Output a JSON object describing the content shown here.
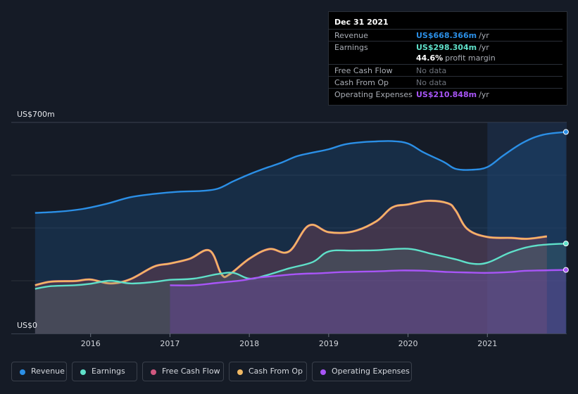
{
  "chart_data": {
    "type": "area",
    "y_axis": {
      "top_label": "US$700m",
      "bottom_label": "US$0",
      "ylim": [
        0,
        700
      ],
      "unit": "US$m"
    },
    "x_ticks": [
      {
        "label": "2016",
        "x": 2016.0
      },
      {
        "label": "2017",
        "x": 2017.0
      },
      {
        "label": "2018",
        "x": 2018.0
      },
      {
        "label": "2019",
        "x": 2019.0
      },
      {
        "label": "2020",
        "x": 2020.0
      },
      {
        "label": "2021",
        "x": 2021.0
      }
    ],
    "xlim": [
      2015.0,
      2022.0
    ],
    "highlight_start": 2021.0,
    "series": [
      {
        "name": "Revenue",
        "color": "#2b8fe6",
        "points": [
          [
            2015.3,
            400
          ],
          [
            2015.6,
            404
          ],
          [
            2015.9,
            413
          ],
          [
            2016.2,
            430
          ],
          [
            2016.5,
            452
          ],
          [
            2016.8,
            463
          ],
          [
            2017.1,
            470
          ],
          [
            2017.4,
            473
          ],
          [
            2017.6,
            480
          ],
          [
            2017.8,
            505
          ],
          [
            2018.0,
            528
          ],
          [
            2018.2,
            548
          ],
          [
            2018.4,
            566
          ],
          [
            2018.6,
            588
          ],
          [
            2018.8,
            600
          ],
          [
            2019.0,
            611
          ],
          [
            2019.2,
            627
          ],
          [
            2019.4,
            634
          ],
          [
            2019.6,
            637
          ],
          [
            2019.8,
            638
          ],
          [
            2020.0,
            630
          ],
          [
            2020.2,
            600
          ],
          [
            2020.45,
            569
          ],
          [
            2020.6,
            546
          ],
          [
            2020.8,
            543
          ],
          [
            2021.0,
            552
          ],
          [
            2021.2,
            590
          ],
          [
            2021.45,
            633
          ],
          [
            2021.7,
            659
          ],
          [
            2021.99,
            668.366
          ]
        ]
      },
      {
        "name": "Earnings",
        "color": "#5fe0c9",
        "points": [
          [
            2015.3,
            148
          ],
          [
            2015.5,
            157
          ],
          [
            2015.8,
            160
          ],
          [
            2016.0,
            165
          ],
          [
            2016.25,
            175
          ],
          [
            2016.5,
            166
          ],
          [
            2016.8,
            171
          ],
          [
            2017.0,
            178
          ],
          [
            2017.3,
            182
          ],
          [
            2017.6,
            197
          ],
          [
            2017.8,
            201
          ],
          [
            2018.0,
            182
          ],
          [
            2018.2,
            192
          ],
          [
            2018.5,
            216
          ],
          [
            2018.8,
            237
          ],
          [
            2019.0,
            272
          ],
          [
            2019.3,
            275
          ],
          [
            2019.6,
            276
          ],
          [
            2020.0,
            281
          ],
          [
            2020.3,
            264
          ],
          [
            2020.6,
            246
          ],
          [
            2020.8,
            232
          ],
          [
            2021.0,
            235
          ],
          [
            2021.3,
            270
          ],
          [
            2021.6,
            291
          ],
          [
            2021.99,
            298.304
          ]
        ]
      },
      {
        "name": "Free Cash Flow",
        "color": "#d0577f",
        "points": []
      },
      {
        "name": "Cash From Op",
        "color": "#f0b863",
        "points": [
          [
            2015.3,
            160
          ],
          [
            2015.5,
            172
          ],
          [
            2015.8,
            174
          ],
          [
            2016.0,
            179
          ],
          [
            2016.25,
            166
          ],
          [
            2016.5,
            180
          ],
          [
            2016.8,
            222
          ],
          [
            2017.0,
            232
          ],
          [
            2017.25,
            248
          ],
          [
            2017.5,
            275
          ],
          [
            2017.65,
            196
          ],
          [
            2017.75,
            196
          ],
          [
            2018.0,
            248
          ],
          [
            2018.25,
            280
          ],
          [
            2018.5,
            272
          ],
          [
            2018.75,
            358
          ],
          [
            2019.0,
            336
          ],
          [
            2019.3,
            338
          ],
          [
            2019.6,
            372
          ],
          [
            2019.8,
            418
          ],
          [
            2020.0,
            428
          ],
          [
            2020.25,
            440
          ],
          [
            2020.5,
            432
          ],
          [
            2020.6,
            408
          ],
          [
            2020.75,
            346
          ],
          [
            2021.0,
            320
          ],
          [
            2021.3,
            317
          ],
          [
            2021.5,
            314
          ],
          [
            2021.75,
            322
          ]
        ]
      },
      {
        "name": "Operating Expenses",
        "color": "#a855f7",
        "points": [
          [
            2017.0,
            160
          ],
          [
            2017.3,
            160
          ],
          [
            2017.6,
            168
          ],
          [
            2017.9,
            176
          ],
          [
            2018.1,
            185
          ],
          [
            2018.3,
            190
          ],
          [
            2018.6,
            197
          ],
          [
            2018.9,
            200
          ],
          [
            2019.2,
            204
          ],
          [
            2019.6,
            206
          ],
          [
            2019.9,
            209
          ],
          [
            2020.2,
            208
          ],
          [
            2020.5,
            204
          ],
          [
            2020.8,
            202
          ],
          [
            2021.0,
            201
          ],
          [
            2021.3,
            204
          ],
          [
            2021.5,
            208
          ],
          [
            2021.99,
            210.848
          ]
        ]
      }
    ]
  },
  "tooltip": {
    "date": "Dec 31 2021",
    "rows": [
      {
        "label": "Revenue",
        "value": "US$668.366m",
        "unit": "/yr",
        "color": "#2b8fe6"
      },
      {
        "label": "Earnings",
        "value": "US$298.304m",
        "unit": "/yr",
        "color": "#5fe0c9"
      },
      {
        "label": "",
        "margin_value": "44.6%",
        "margin_label": "profit margin"
      },
      {
        "label": "Free Cash Flow",
        "nodata": "No data"
      },
      {
        "label": "Cash From Op",
        "nodata": "No data"
      },
      {
        "label": "Operating Expenses",
        "value": "US$210.848m",
        "unit": "/yr",
        "color": "#a855f7"
      }
    ]
  },
  "legend": [
    {
      "label": "Revenue",
      "color": "#2b8fe6"
    },
    {
      "label": "Earnings",
      "color": "#5fe0c9"
    },
    {
      "label": "Free Cash Flow",
      "color": "#d0577f"
    },
    {
      "label": "Cash From Op",
      "color": "#f0b863"
    },
    {
      "label": "Operating Expenses",
      "color": "#a855f7"
    }
  ]
}
